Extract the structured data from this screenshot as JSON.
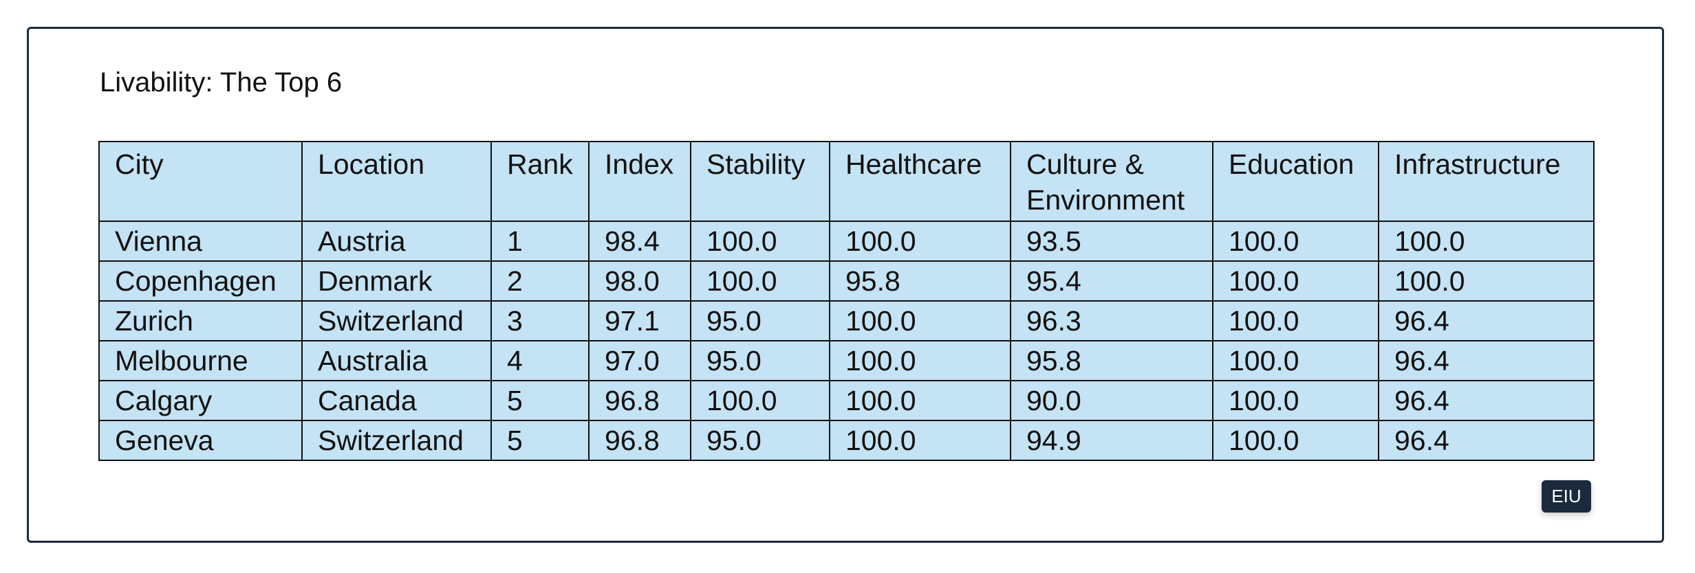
{
  "title": "Livability: The Top 6",
  "table": {
    "columns": [
      "City",
      "Location",
      "Rank",
      "Index",
      "Stability",
      "Healthcare",
      "Culture & Environment",
      "Education",
      "Infrastructure"
    ],
    "rows": [
      [
        "Vienna",
        "Austria",
        "1",
        "98.4",
        "100.0",
        "100.0",
        "93.5",
        "100.0",
        "100.0"
      ],
      [
        "Copenhagen",
        "Denmark",
        "2",
        "98.0",
        "100.0",
        "95.8",
        "95.4",
        "100.0",
        "100.0"
      ],
      [
        "Zurich",
        "Switzerland",
        "3",
        "97.1",
        "95.0",
        "100.0",
        "96.3",
        "100.0",
        "96.4"
      ],
      [
        "Melbourne",
        "Australia",
        "4",
        "97.0",
        "95.0",
        "100.0",
        "95.8",
        "100.0",
        "96.4"
      ],
      [
        "Calgary",
        "Canada",
        "5",
        "96.8",
        "100.0",
        "100.0",
        "90.0",
        "100.0",
        "96.4"
      ],
      [
        "Geneva",
        "Switzerland",
        "5",
        "96.8",
        "95.0",
        "100.0",
        "94.9",
        "100.0",
        "96.4"
      ]
    ]
  },
  "badge": "EIU"
}
